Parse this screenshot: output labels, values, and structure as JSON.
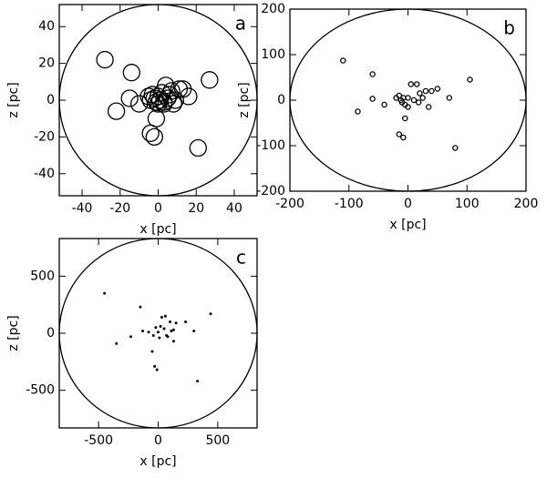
{
  "chart_data": [
    {
      "type": "scatter",
      "label": "a",
      "xlabel": "x [pc]",
      "ylabel": "z [pc]",
      "marker": "open-circle",
      "xlim": [
        -52,
        52
      ],
      "ylim": [
        -52,
        52
      ],
      "xticks": [
        -40,
        -20,
        0,
        20,
        40
      ],
      "yticks": [
        -40,
        -20,
        0,
        20,
        40
      ],
      "x": [
        -28,
        -14,
        -22,
        -15,
        -10,
        -5,
        -4,
        -3,
        -2,
        -1,
        0,
        1,
        2,
        3,
        4,
        5,
        6,
        7,
        8,
        9,
        11,
        13,
        16,
        27,
        -1,
        -4,
        -2,
        21,
        0,
        3
      ],
      "y": [
        22,
        15,
        -6,
        1,
        -2,
        2,
        0,
        3,
        1,
        -1,
        2,
        0,
        4,
        -2,
        8,
        1,
        3,
        5,
        -2,
        0,
        6,
        6,
        2,
        11,
        -10,
        -18,
        -20,
        -26,
        -2,
        -1
      ]
    },
    {
      "type": "scatter",
      "label": "b",
      "xlabel": "x [pc]",
      "ylabel": "z [pc]",
      "marker": "open-circle",
      "xlim": [
        -200,
        200
      ],
      "ylim": [
        -200,
        200
      ],
      "xticks": [
        -200,
        -100,
        0,
        100,
        200
      ],
      "yticks": [
        -200,
        -100,
        0,
        100,
        200
      ],
      "x": [
        -110,
        -60,
        -85,
        -60,
        -40,
        -15,
        -12,
        -10,
        -8,
        -5,
        0,
        5,
        10,
        15,
        18,
        25,
        30,
        35,
        40,
        50,
        70,
        105,
        80,
        -15,
        -8,
        -5,
        20,
        0,
        -20
      ],
      "y": [
        87,
        57,
        -25,
        3,
        -10,
        10,
        0,
        -5,
        5,
        -10,
        5,
        35,
        0,
        35,
        -5,
        5,
        20,
        -15,
        20,
        25,
        5,
        45,
        -105,
        -75,
        -82,
        -40,
        15,
        -15,
        5
      ]
    },
    {
      "type": "scatter",
      "label": "c",
      "xlabel": "x [pc]",
      "ylabel": "z [pc]",
      "marker": "dot",
      "xlim": [
        -830,
        830
      ],
      "ylim": [
        -830,
        830
      ],
      "xticks": [
        -500,
        0,
        500
      ],
      "yticks": [
        -500,
        0,
        500
      ],
      "x": [
        -450,
        -350,
        -230,
        -150,
        -130,
        -50,
        -30,
        -10,
        -40,
        0,
        30,
        60,
        80,
        100,
        130,
        150,
        230,
        300,
        330,
        440,
        -80,
        20,
        50,
        110,
        -20,
        70,
        10,
        130
      ],
      "y": [
        350,
        -90,
        -30,
        230,
        20,
        -160,
        -290,
        -320,
        -20,
        10,
        140,
        150,
        -30,
        100,
        -70,
        90,
        100,
        20,
        -420,
        170,
        10,
        60,
        40,
        20,
        50,
        -20,
        -40,
        30
      ]
    }
  ]
}
